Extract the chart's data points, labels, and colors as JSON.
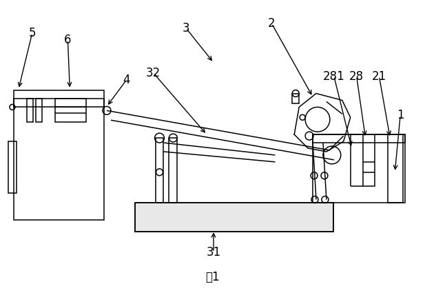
{
  "title": "图1",
  "title_fontsize": 12,
  "label_fontsize": 12,
  "bg_color": "#ffffff",
  "line_color": "#000000"
}
